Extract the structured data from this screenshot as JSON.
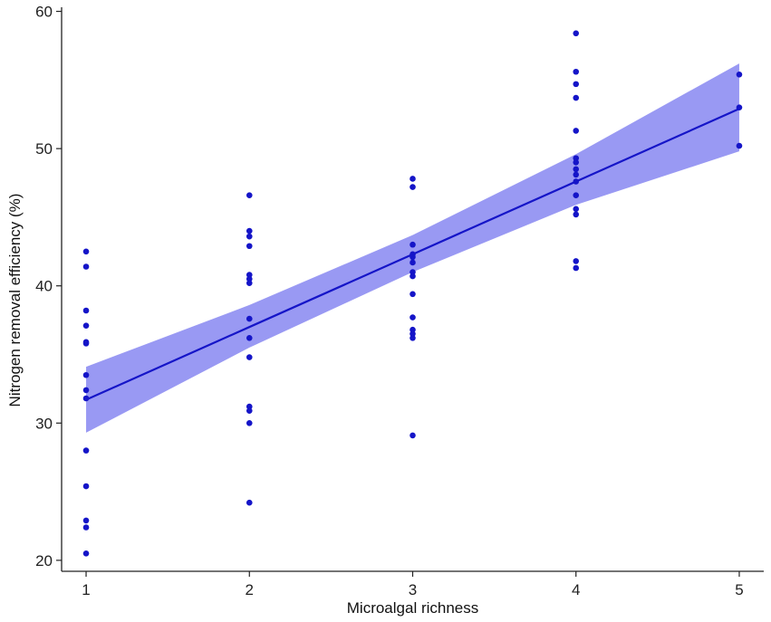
{
  "chart_data": {
    "type": "scatter",
    "title": "",
    "xlabel": "Microalgal richness",
    "ylabel": "Nitrogen removal efficiency (%)",
    "xlim": [
      0.85,
      5.15
    ],
    "ylim": [
      19.2,
      60.3
    ],
    "x_ticks": [
      1,
      2,
      3,
      4,
      5
    ],
    "y_ticks": [
      20,
      30,
      40,
      50,
      60
    ],
    "grid": false,
    "colors": {
      "points": "#1515c8",
      "line": "#1515c8",
      "band": "#8080f0",
      "axis": "#222222"
    },
    "points": [
      {
        "x": 1,
        "y": 42.5
      },
      {
        "x": 1,
        "y": 41.4
      },
      {
        "x": 1,
        "y": 38.2
      },
      {
        "x": 1,
        "y": 37.1
      },
      {
        "x": 1,
        "y": 35.9
      },
      {
        "x": 1,
        "y": 35.8
      },
      {
        "x": 1,
        "y": 33.5
      },
      {
        "x": 1,
        "y": 32.4
      },
      {
        "x": 1,
        "y": 31.8
      },
      {
        "x": 1,
        "y": 28.0
      },
      {
        "x": 1,
        "y": 25.4
      },
      {
        "x": 1,
        "y": 22.9
      },
      {
        "x": 1,
        "y": 22.4
      },
      {
        "x": 1,
        "y": 20.5
      },
      {
        "x": 2,
        "y": 46.6
      },
      {
        "x": 2,
        "y": 44.0
      },
      {
        "x": 2,
        "y": 43.6
      },
      {
        "x": 2,
        "y": 42.9
      },
      {
        "x": 2,
        "y": 40.8
      },
      {
        "x": 2,
        "y": 40.5
      },
      {
        "x": 2,
        "y": 40.2
      },
      {
        "x": 2,
        "y": 37.6
      },
      {
        "x": 2,
        "y": 36.2
      },
      {
        "x": 2,
        "y": 34.8
      },
      {
        "x": 2,
        "y": 31.2
      },
      {
        "x": 2,
        "y": 30.9
      },
      {
        "x": 2,
        "y": 30.0
      },
      {
        "x": 2,
        "y": 24.2
      },
      {
        "x": 3,
        "y": 47.8
      },
      {
        "x": 3,
        "y": 47.2
      },
      {
        "x": 3,
        "y": 43.0
      },
      {
        "x": 3,
        "y": 42.3
      },
      {
        "x": 3,
        "y": 42.1
      },
      {
        "x": 3,
        "y": 41.7
      },
      {
        "x": 3,
        "y": 41.0
      },
      {
        "x": 3,
        "y": 40.7
      },
      {
        "x": 3,
        "y": 39.4
      },
      {
        "x": 3,
        "y": 37.7
      },
      {
        "x": 3,
        "y": 36.8
      },
      {
        "x": 3,
        "y": 36.5
      },
      {
        "x": 3,
        "y": 36.2
      },
      {
        "x": 3,
        "y": 29.1
      },
      {
        "x": 4,
        "y": 58.4
      },
      {
        "x": 4,
        "y": 55.6
      },
      {
        "x": 4,
        "y": 54.7
      },
      {
        "x": 4,
        "y": 53.7
      },
      {
        "x": 4,
        "y": 51.3
      },
      {
        "x": 4,
        "y": 49.3
      },
      {
        "x": 4,
        "y": 49.0
      },
      {
        "x": 4,
        "y": 48.5
      },
      {
        "x": 4,
        "y": 48.1
      },
      {
        "x": 4,
        "y": 47.6
      },
      {
        "x": 4,
        "y": 46.6
      },
      {
        "x": 4,
        "y": 45.6
      },
      {
        "x": 4,
        "y": 45.2
      },
      {
        "x": 4,
        "y": 41.8
      },
      {
        "x": 4,
        "y": 41.3
      },
      {
        "x": 5,
        "y": 55.4
      },
      {
        "x": 5,
        "y": 53.0
      },
      {
        "x": 5,
        "y": 50.2
      }
    ],
    "fit": {
      "x": [
        1,
        2,
        3,
        4,
        5
      ],
      "y": [
        31.7,
        37.0,
        42.3,
        47.6,
        52.9
      ],
      "lower": [
        29.3,
        35.5,
        41.0,
        45.9,
        49.8
      ],
      "upper": [
        34.1,
        38.6,
        43.7,
        49.6,
        56.2
      ]
    }
  }
}
